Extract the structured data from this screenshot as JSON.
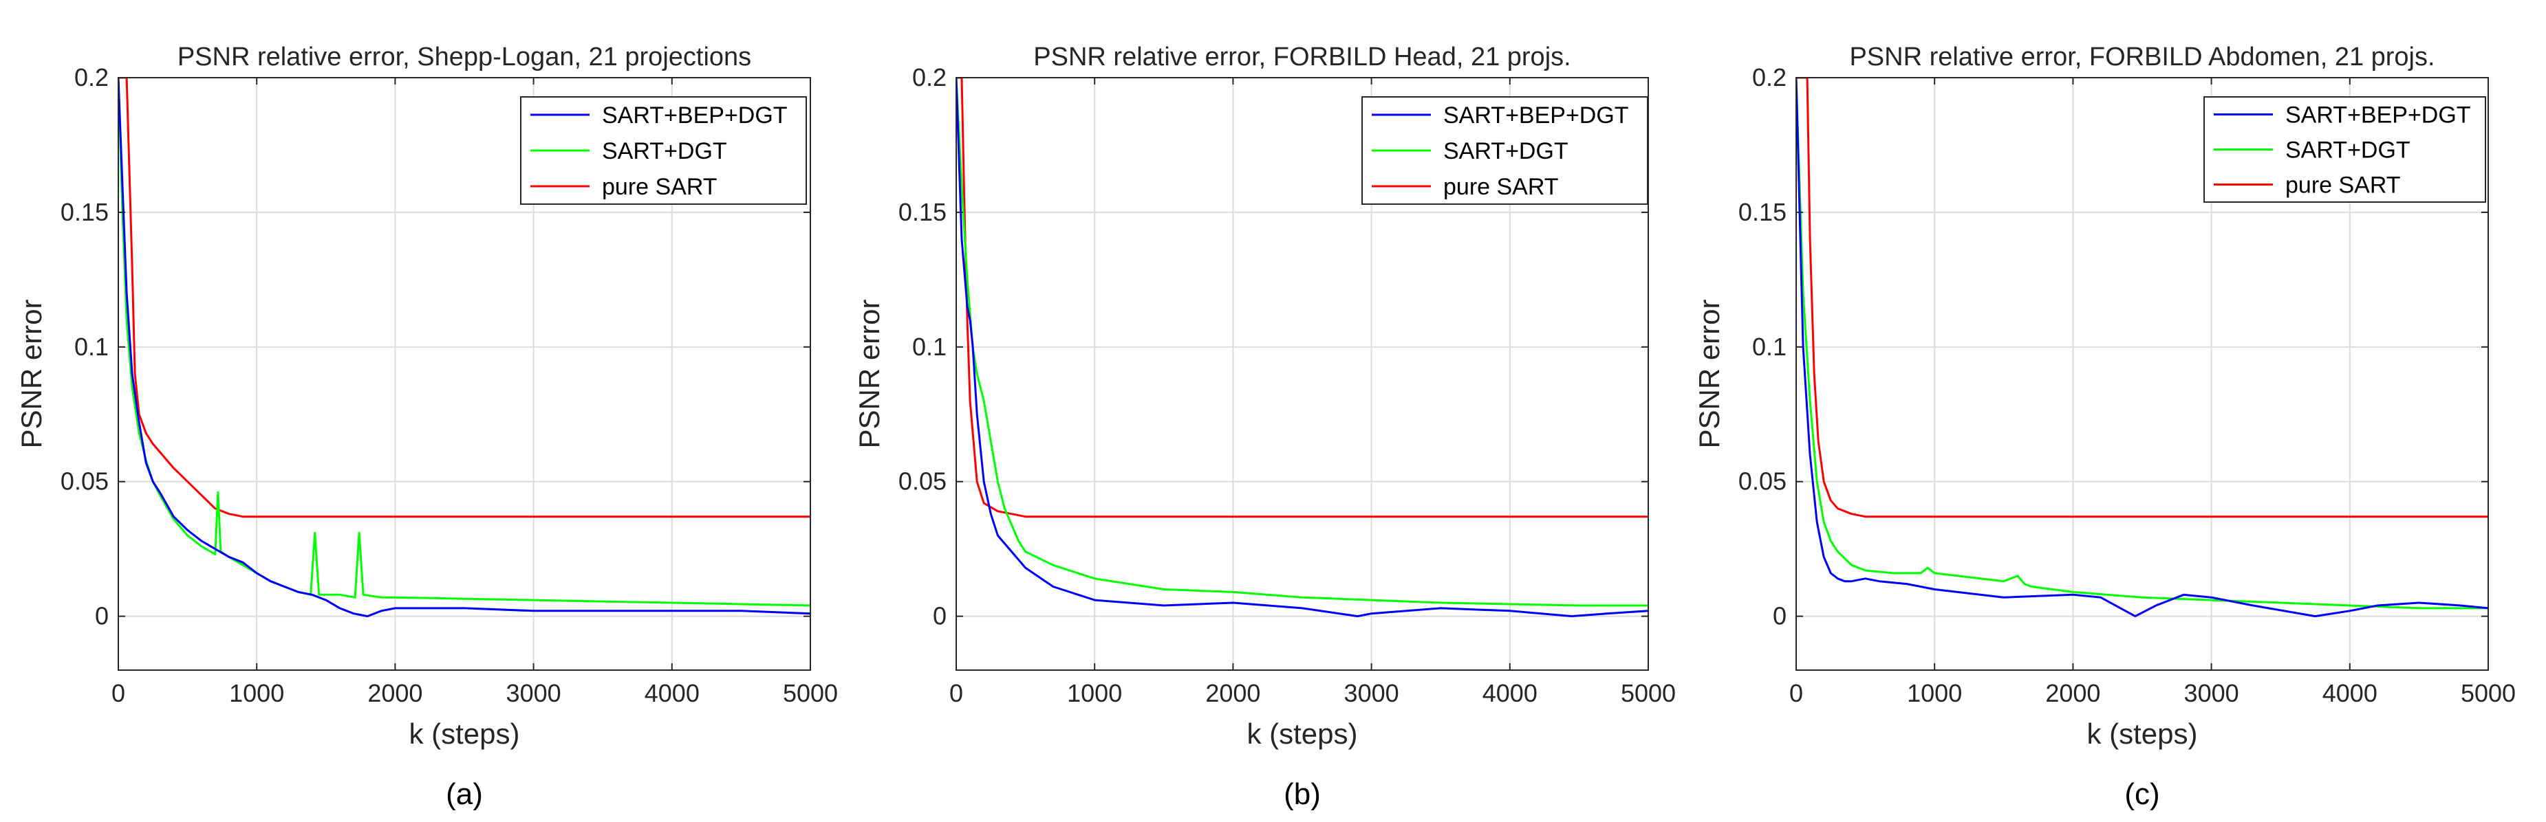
{
  "chart_data": [
    {
      "type": "line",
      "title": "PSNR relative error, Shepp-Logan, 21 projections",
      "subfigure_label": "(a)",
      "xlabel": "k (steps)",
      "ylabel": "PSNR error",
      "xlim": [
        0,
        5000
      ],
      "ylim": [
        -0.02,
        0.2
      ],
      "xticks": [
        0,
        1000,
        2000,
        3000,
        4000,
        5000
      ],
      "yticks": [
        0,
        0.05,
        0.1,
        0.15,
        0.2
      ],
      "xtick_labels": [
        "0",
        "1000",
        "2000",
        "3000",
        "4000",
        "5000"
      ],
      "ytick_labels": [
        "0",
        "0.05",
        "0.1",
        "0.15",
        "0.2"
      ],
      "grid": true,
      "legend_position": "top-right",
      "series": [
        {
          "name": "SART+BEP+DGT",
          "color": "#0000ff",
          "x": [
            0,
            30,
            60,
            100,
            150,
            200,
            250,
            300,
            400,
            500,
            600,
            700,
            800,
            900,
            1000,
            1100,
            1200,
            1300,
            1400,
            1500,
            1600,
            1700,
            1800,
            1900,
            2000,
            2500,
            3000,
            3500,
            4000,
            4500,
            5000
          ],
          "y": [
            0.2,
            0.16,
            0.12,
            0.09,
            0.072,
            0.057,
            0.05,
            0.046,
            0.037,
            0.032,
            0.028,
            0.025,
            0.022,
            0.02,
            0.016,
            0.013,
            0.011,
            0.009,
            0.008,
            0.006,
            0.003,
            0.001,
            0.0,
            0.002,
            0.003,
            0.003,
            0.002,
            0.002,
            0.002,
            0.002,
            0.001
          ]
        },
        {
          "name": "SART+DGT",
          "color": "#00ff00",
          "x": [
            0,
            30,
            60,
            100,
            150,
            200,
            250,
            300,
            400,
            500,
            600,
            700,
            720,
            740,
            800,
            900,
            1000,
            1100,
            1200,
            1300,
            1390,
            1420,
            1450,
            1600,
            1710,
            1740,
            1770,
            1900,
            2000,
            2500,
            3000,
            3500,
            4000,
            4500,
            5000
          ],
          "y": [
            0.2,
            0.15,
            0.11,
            0.085,
            0.068,
            0.058,
            0.05,
            0.045,
            0.036,
            0.03,
            0.026,
            0.023,
            0.046,
            0.024,
            0.022,
            0.019,
            0.016,
            0.013,
            0.011,
            0.009,
            0.008,
            0.031,
            0.008,
            0.008,
            0.007,
            0.031,
            0.008,
            0.007,
            0.007,
            0.0065,
            0.006,
            0.0055,
            0.005,
            0.0045,
            0.004
          ]
        },
        {
          "name": "pure SART",
          "color": "#ff0000",
          "x": [
            0,
            60,
            100,
            120,
            150,
            200,
            250,
            300,
            350,
            400,
            500,
            600,
            700,
            800,
            900,
            1000,
            1100,
            1500,
            2000,
            3000,
            4000,
            5000
          ],
          "y": [
            0.2,
            0.2,
            0.13,
            0.09,
            0.075,
            0.068,
            0.064,
            0.061,
            0.058,
            0.055,
            0.05,
            0.045,
            0.04,
            0.038,
            0.037,
            0.037,
            0.037,
            0.037,
            0.037,
            0.037,
            0.037,
            0.037
          ]
        }
      ]
    },
    {
      "type": "line",
      "title": "PSNR relative error, FORBILD Head, 21 projs.",
      "subfigure_label": "(b)",
      "xlabel": "k (steps)",
      "ylabel": "PSNR error",
      "xlim": [
        0,
        5000
      ],
      "ylim": [
        -0.02,
        0.2
      ],
      "xticks": [
        0,
        1000,
        2000,
        3000,
        4000,
        5000
      ],
      "yticks": [
        0,
        0.05,
        0.1,
        0.15,
        0.2
      ],
      "xtick_labels": [
        "0",
        "1000",
        "2000",
        "3000",
        "4000",
        "5000"
      ],
      "ytick_labels": [
        "0",
        "0.05",
        "0.1",
        "0.15",
        "0.2"
      ],
      "grid": true,
      "legend_position": "top-right",
      "series": [
        {
          "name": "SART+BEP+DGT",
          "color": "#0000ff",
          "x": [
            0,
            40,
            80,
            100,
            120,
            150,
            200,
            250,
            300,
            400,
            500,
            700,
            1000,
            1500,
            2000,
            2500,
            2900,
            3000,
            3500,
            4000,
            4450,
            4700,
            5000
          ],
          "y": [
            0.2,
            0.14,
            0.115,
            0.11,
            0.1,
            0.075,
            0.05,
            0.038,
            0.03,
            0.024,
            0.018,
            0.011,
            0.006,
            0.004,
            0.005,
            0.003,
            0.0,
            0.001,
            0.003,
            0.002,
            0.0,
            0.001,
            0.002
          ]
        },
        {
          "name": "SART+DGT",
          "color": "#00ff00",
          "x": [
            0,
            40,
            80,
            120,
            150,
            200,
            250,
            300,
            350,
            400,
            450,
            500,
            700,
            1000,
            1500,
            2000,
            2500,
            3000,
            3500,
            4000,
            4500,
            5000
          ],
          "y": [
            0.2,
            0.16,
            0.125,
            0.1,
            0.09,
            0.08,
            0.065,
            0.05,
            0.04,
            0.034,
            0.028,
            0.024,
            0.019,
            0.014,
            0.01,
            0.009,
            0.007,
            0.006,
            0.005,
            0.0045,
            0.004,
            0.004
          ]
        },
        {
          "name": "pure SART",
          "color": "#ff0000",
          "x": [
            0,
            40,
            60,
            80,
            100,
            150,
            200,
            300,
            400,
            500,
            700,
            1000,
            2000,
            3000,
            4000,
            5000
          ],
          "y": [
            0.2,
            0.2,
            0.15,
            0.11,
            0.08,
            0.05,
            0.042,
            0.039,
            0.038,
            0.037,
            0.037,
            0.037,
            0.037,
            0.037,
            0.037,
            0.037
          ]
        }
      ]
    },
    {
      "type": "line",
      "title": "PSNR relative error, FORBILD Abdomen, 21 projs.",
      "subfigure_label": "(c)",
      "xlabel": "k (steps)",
      "ylabel": "PSNR error",
      "xlim": [
        0,
        5000
      ],
      "ylim": [
        -0.02,
        0.2
      ],
      "xticks": [
        0,
        1000,
        2000,
        3000,
        4000,
        5000
      ],
      "yticks": [
        0,
        0.05,
        0.1,
        0.15,
        0.2
      ],
      "xtick_labels": [
        "0",
        "1000",
        "2000",
        "3000",
        "4000",
        "5000"
      ],
      "ytick_labels": [
        "0",
        "0.05",
        "0.1",
        "0.15",
        "0.2"
      ],
      "grid": true,
      "legend_position": "top-right",
      "series": [
        {
          "name": "SART+BEP+DGT",
          "color": "#0000ff",
          "x": [
            0,
            50,
            100,
            150,
            200,
            250,
            300,
            350,
            400,
            500,
            600,
            800,
            1000,
            1500,
            2000,
            2200,
            2450,
            2600,
            2800,
            3000,
            3300,
            3750,
            4000,
            4200,
            4500,
            4800,
            5000
          ],
          "y": [
            0.2,
            0.1,
            0.06,
            0.035,
            0.022,
            0.016,
            0.014,
            0.013,
            0.013,
            0.014,
            0.013,
            0.012,
            0.01,
            0.007,
            0.008,
            0.007,
            0.0,
            0.004,
            0.008,
            0.007,
            0.004,
            0.0,
            0.002,
            0.004,
            0.005,
            0.004,
            0.003
          ]
        },
        {
          "name": "SART+DGT",
          "color": "#00ff00",
          "x": [
            0,
            50,
            100,
            150,
            200,
            250,
            300,
            400,
            500,
            700,
            900,
            950,
            1000,
            1500,
            1600,
            1650,
            1700,
            2000,
            2500,
            3000,
            3500,
            4000,
            4500,
            5000
          ],
          "y": [
            0.2,
            0.12,
            0.08,
            0.05,
            0.035,
            0.028,
            0.024,
            0.019,
            0.017,
            0.016,
            0.016,
            0.018,
            0.016,
            0.013,
            0.015,
            0.012,
            0.011,
            0.009,
            0.007,
            0.006,
            0.005,
            0.004,
            0.003,
            0.003
          ]
        },
        {
          "name": "pure SART",
          "color": "#ff0000",
          "x": [
            0,
            80,
            100,
            130,
            160,
            200,
            250,
            300,
            400,
            500,
            700,
            1000,
            2000,
            3000,
            4000,
            5000
          ],
          "y": [
            0.2,
            0.2,
            0.14,
            0.09,
            0.065,
            0.05,
            0.043,
            0.04,
            0.038,
            0.037,
            0.037,
            0.037,
            0.037,
            0.037,
            0.037,
            0.037
          ]
        }
      ]
    }
  ]
}
